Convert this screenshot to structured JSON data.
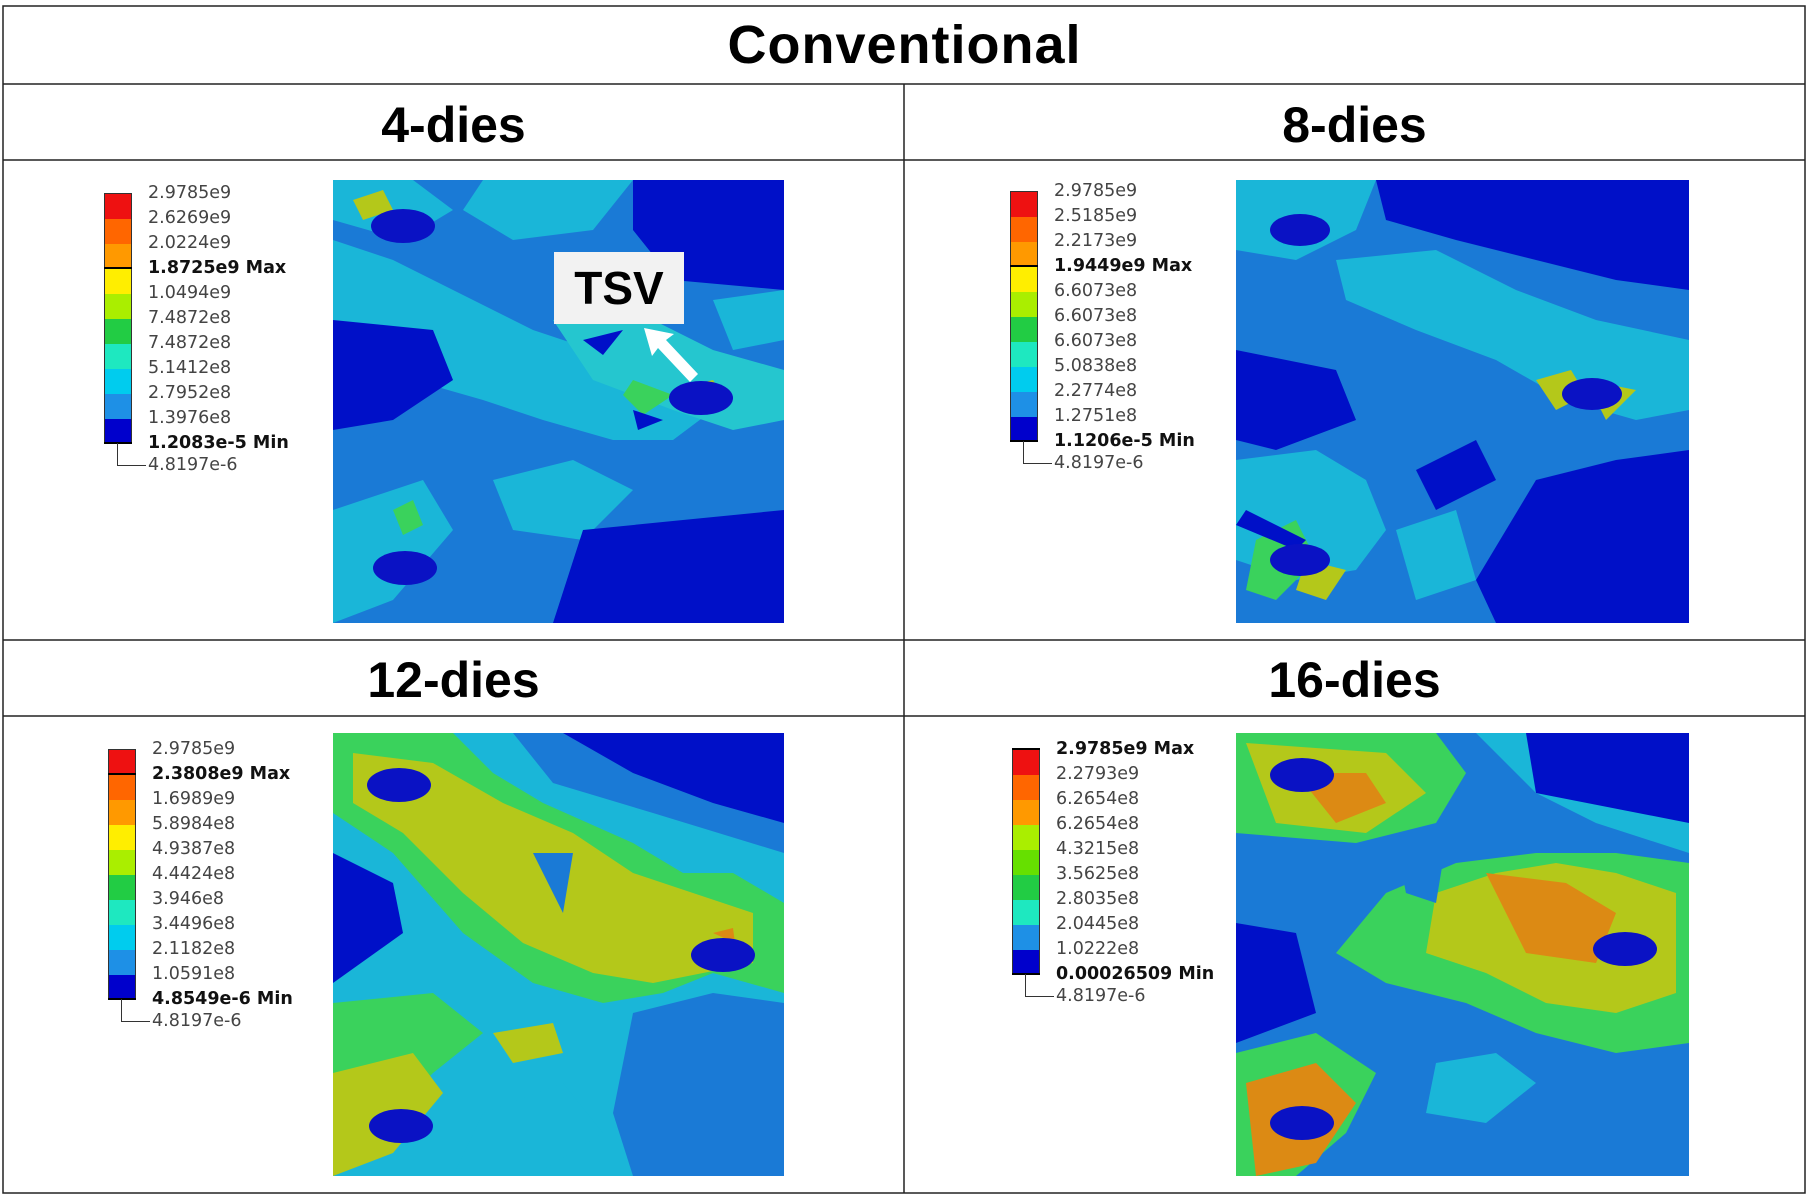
{
  "title": "Conventional",
  "colors": {
    "scale": [
      "#0000cc",
      "#1e90e6",
      "#00ccee",
      "#1ee8c0",
      "#22cc44",
      "#66e000",
      "#aaee00",
      "#ffee00",
      "#ff9900",
      "#ff6600",
      "#ee1111"
    ],
    "contour": {
      "dark_blue": "#0010c8",
      "mid_blue": "#1a7ad6",
      "light_blue": "#1ab6d8",
      "cyan": "#25c6cf",
      "green": "#3ad25c",
      "yellow_green": "#b4c81a",
      "orange": "#dc8a14",
      "tsv": "#0a12c4"
    }
  },
  "callout": {
    "label": "TSV"
  },
  "panels": [
    {
      "title": "4-dies",
      "legend": [
        {
          "text": "2.9785e9",
          "bold": false
        },
        {
          "text": "2.6269e9",
          "bold": false
        },
        {
          "text": "2.0224e9",
          "bold": false
        },
        {
          "text": "1.8725e9 Max",
          "bold": true
        },
        {
          "text": "1.0494e9",
          "bold": false
        },
        {
          "text": "7.4872e8",
          "bold": false
        },
        {
          "text": "7.4872e8",
          "bold": false
        },
        {
          "text": "5.1412e8",
          "bold": false
        },
        {
          "text": "2.7952e8",
          "bold": false
        },
        {
          "text": "1.3976e8",
          "bold": false
        },
        {
          "text": "1.2083e-5 Min",
          "bold": true
        },
        {
          "text": "4.8197e-6",
          "bold": false
        }
      ],
      "marker": {
        "max_index": 3,
        "min_index": 10
      }
    },
    {
      "title": "8-dies",
      "legend": [
        {
          "text": "2.9785e9",
          "bold": false
        },
        {
          "text": "2.5185e9",
          "bold": false
        },
        {
          "text": "2.2173e9",
          "bold": false
        },
        {
          "text": "1.9449e9 Max",
          "bold": true
        },
        {
          "text": "6.6073e8",
          "bold": false
        },
        {
          "text": "6.6073e8",
          "bold": false
        },
        {
          "text": "6.6073e8",
          "bold": false
        },
        {
          "text": "5.0838e8",
          "bold": false
        },
        {
          "text": "2.2774e8",
          "bold": false
        },
        {
          "text": "1.2751e8",
          "bold": false
        },
        {
          "text": "1.1206e-5 Min",
          "bold": true
        },
        {
          "text": "4.8197e-6",
          "bold": false
        }
      ],
      "marker": {
        "max_index": 3,
        "min_index": 10
      }
    },
    {
      "title": "12-dies",
      "legend": [
        {
          "text": "2.9785e9",
          "bold": false
        },
        {
          "text": "2.3808e9 Max",
          "bold": true
        },
        {
          "text": "1.6989e9",
          "bold": false
        },
        {
          "text": "5.8984e8",
          "bold": false
        },
        {
          "text": "4.9387e8",
          "bold": false
        },
        {
          "text": "4.4424e8",
          "bold": false
        },
        {
          "text": "3.946e8",
          "bold": false
        },
        {
          "text": "3.4496e8",
          "bold": false
        },
        {
          "text": "2.1182e8",
          "bold": false
        },
        {
          "text": "1.0591e8",
          "bold": false
        },
        {
          "text": "4.8549e-6 Min",
          "bold": true
        },
        {
          "text": "4.8197e-6",
          "bold": false
        }
      ],
      "marker": {
        "max_index": 1,
        "min_index": 10
      }
    },
    {
      "title": "16-dies",
      "legend": [
        {
          "text": "2.9785e9 Max",
          "bold": true
        },
        {
          "text": "2.2793e9",
          "bold": false
        },
        {
          "text": "6.2654e8",
          "bold": false
        },
        {
          "text": "6.2654e8",
          "bold": false
        },
        {
          "text": "4.3215e8",
          "bold": false
        },
        {
          "text": "3.5625e8",
          "bold": false
        },
        {
          "text": "2.8035e8",
          "bold": false
        },
        {
          "text": "2.0445e8",
          "bold": false
        },
        {
          "text": "1.0222e8",
          "bold": false
        },
        {
          "text": "0.00026509 Min",
          "bold": true
        },
        {
          "text": "4.8197e-6",
          "bold": false
        }
      ],
      "marker": {
        "max_index": 0,
        "min_index": 9
      }
    }
  ]
}
